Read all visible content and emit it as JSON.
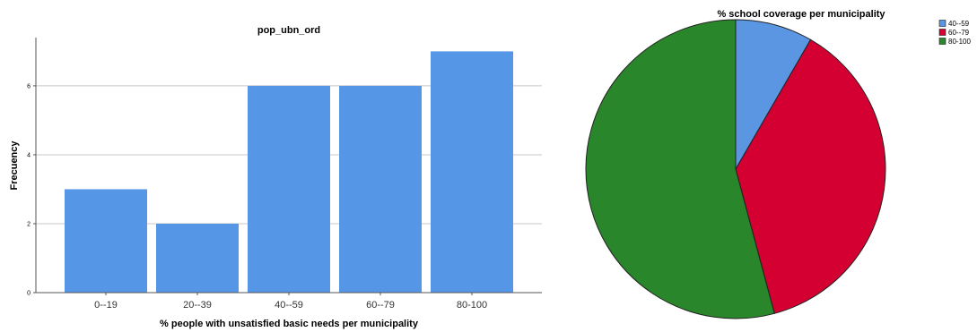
{
  "chart_data": [
    {
      "type": "bar",
      "title": "pop_ubn_ord",
      "xlabel": "% people with unsatisfied basic needs per municipality",
      "ylabel": "Frecuency",
      "categories": [
        "0--19",
        "20--39",
        "40--59",
        "60--79",
        "80-100"
      ],
      "values": [
        3,
        2,
        6,
        6,
        7
      ],
      "ylim": [
        0,
        7.4
      ],
      "yticks": [
        "0",
        "2",
        "4",
        "6"
      ],
      "grid": true,
      "bar_color": "#5596e6"
    },
    {
      "type": "pie",
      "title": "% school coverage per municipality",
      "labels": [
        "40--59",
        "60--79",
        "80-100"
      ],
      "values": [
        2,
        9,
        13
      ],
      "colors": [
        "#5a96e2",
        "#d50032",
        "#2a862a"
      ],
      "legend": "top-right"
    }
  ]
}
